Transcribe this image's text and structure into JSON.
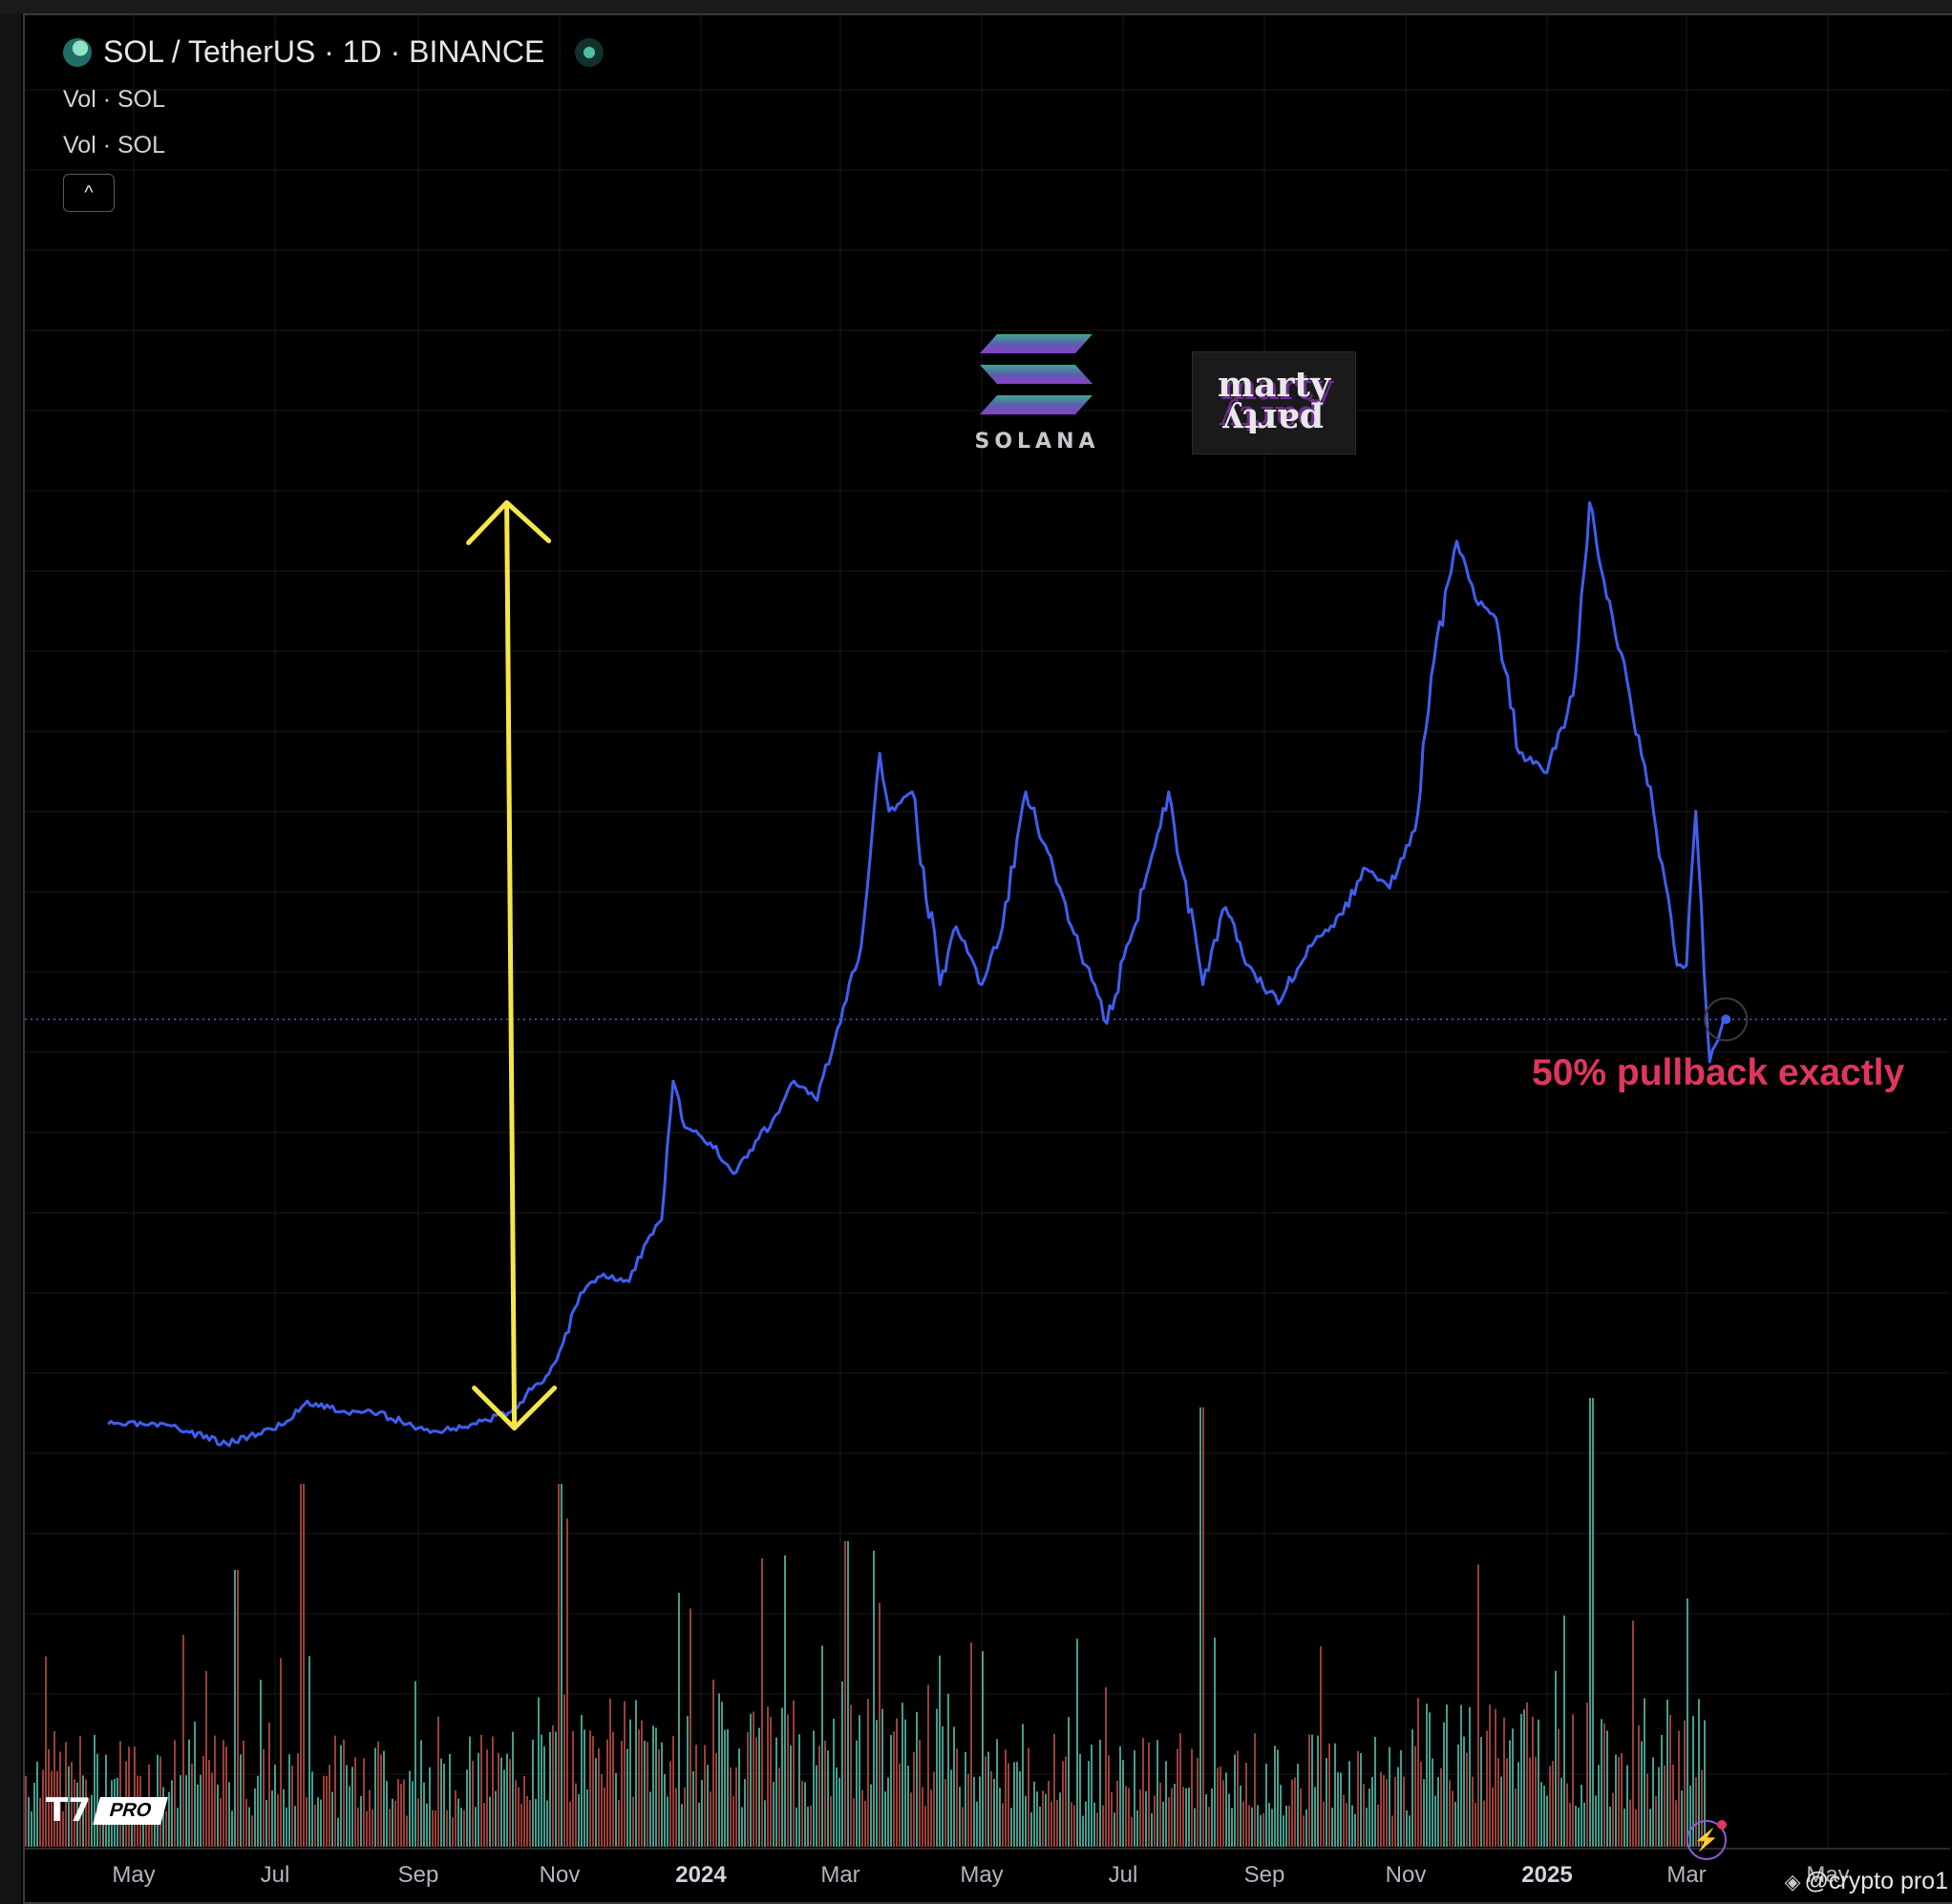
{
  "header": {
    "symbol_title": "SOL / TetherUS · 1D · BINANCE",
    "indicators": [
      "Vol · SOL",
      "Vol · SOL"
    ],
    "collapse_icon": "chevron-up-icon"
  },
  "annotation": {
    "text": "50% pullback exactly",
    "color": "#e0365e"
  },
  "arrow_color": "#f7e64a",
  "logos": {
    "solana_text": "SOLANA",
    "marty_top": "marty",
    "marty_bottom": "party"
  },
  "branding": {
    "tv_badge": "PRO",
    "watermark": "@crypto pro1"
  },
  "colors": {
    "price_line": "#3f5fef",
    "volume_up": "#4fb8a6",
    "volume_down": "#b54a42",
    "background": "#000000",
    "grid": "#1a1a1e",
    "last_price_line": "#3f5fef"
  },
  "chart_data": {
    "type": "line",
    "title": "SOL / TetherUS · 1D · BINANCE",
    "x_axis_ticks": [
      "May",
      "Jul",
      "Sep",
      "Nov",
      "2024",
      "Mar",
      "May",
      "Jul",
      "Sep",
      "Nov",
      "2025",
      "Mar",
      "May"
    ],
    "x_axis_bold_ticks": [
      "2024",
      "2025"
    ],
    "y_axis_labels_visible": false,
    "grid": true,
    "series": [
      {
        "x": [
          "2023-04-20",
          "2023-05-05",
          "2023-05-20",
          "2023-06-10",
          "2023-06-20",
          "2023-07-05",
          "2023-07-15",
          "2023-08-01",
          "2023-08-15",
          "2023-09-01",
          "2023-09-10",
          "2023-10-01",
          "2023-10-10",
          "2023-10-20",
          "2023-10-25",
          "2023-11-01",
          "2023-11-10",
          "2023-11-15",
          "2023-11-20",
          "2023-12-01",
          "2023-12-10",
          "2023-12-15",
          "2023-12-20",
          "2023-12-25",
          "2024-01-05",
          "2024-01-15",
          "2024-01-22",
          "2024-02-01",
          "2024-02-10",
          "2024-02-20",
          "2024-03-01",
          "2024-03-10",
          "2024-03-18",
          "2024-03-22",
          "2024-04-01",
          "2024-04-13",
          "2024-04-20",
          "2024-05-01",
          "2024-05-10",
          "2024-05-20",
          "2024-06-01",
          "2024-06-15",
          "2024-06-24",
          "2024-07-10",
          "2024-07-21",
          "2024-08-05",
          "2024-08-15",
          "2024-08-25",
          "2024-09-07",
          "2024-09-20",
          "2024-10-01",
          "2024-10-15",
          "2024-10-25",
          "2024-11-05",
          "2024-11-12",
          "2024-11-23",
          "2024-12-01",
          "2024-12-10",
          "2024-12-20",
          "2025-01-01",
          "2025-01-12",
          "2025-01-19",
          "2025-01-25",
          "2025-02-05",
          "2025-02-15",
          "2025-02-25",
          "2025-03-01",
          "2025-03-05",
          "2025-03-11",
          "2025-03-18"
        ],
        "y": [
          21,
          21,
          20,
          16,
          18,
          21,
          27,
          24,
          24,
          20,
          19,
          22,
          24,
          30,
          32,
          40,
          55,
          58,
          60,
          58,
          70,
          74,
          110,
          98,
          94,
          86,
          92,
          100,
          110,
          105,
          125,
          145,
          195,
          180,
          185,
          135,
          150,
          135,
          150,
          185,
          165,
          140,
          125,
          160,
          185,
          135,
          155,
          140,
          130,
          145,
          150,
          165,
          160,
          175,
          215,
          250,
          235,
          230,
          195,
          190,
          210,
          260,
          240,
          210,
          180,
          140,
          140,
          180,
          115,
          126
        ]
      }
    ],
    "volume": {
      "visible": true,
      "up_color": "#4fb8a6",
      "down_color": "#b54a42"
    },
    "arrow_annotation": {
      "from_y": 20,
      "to_y": 260,
      "date": "2023-10-10"
    },
    "last_price": 126
  }
}
